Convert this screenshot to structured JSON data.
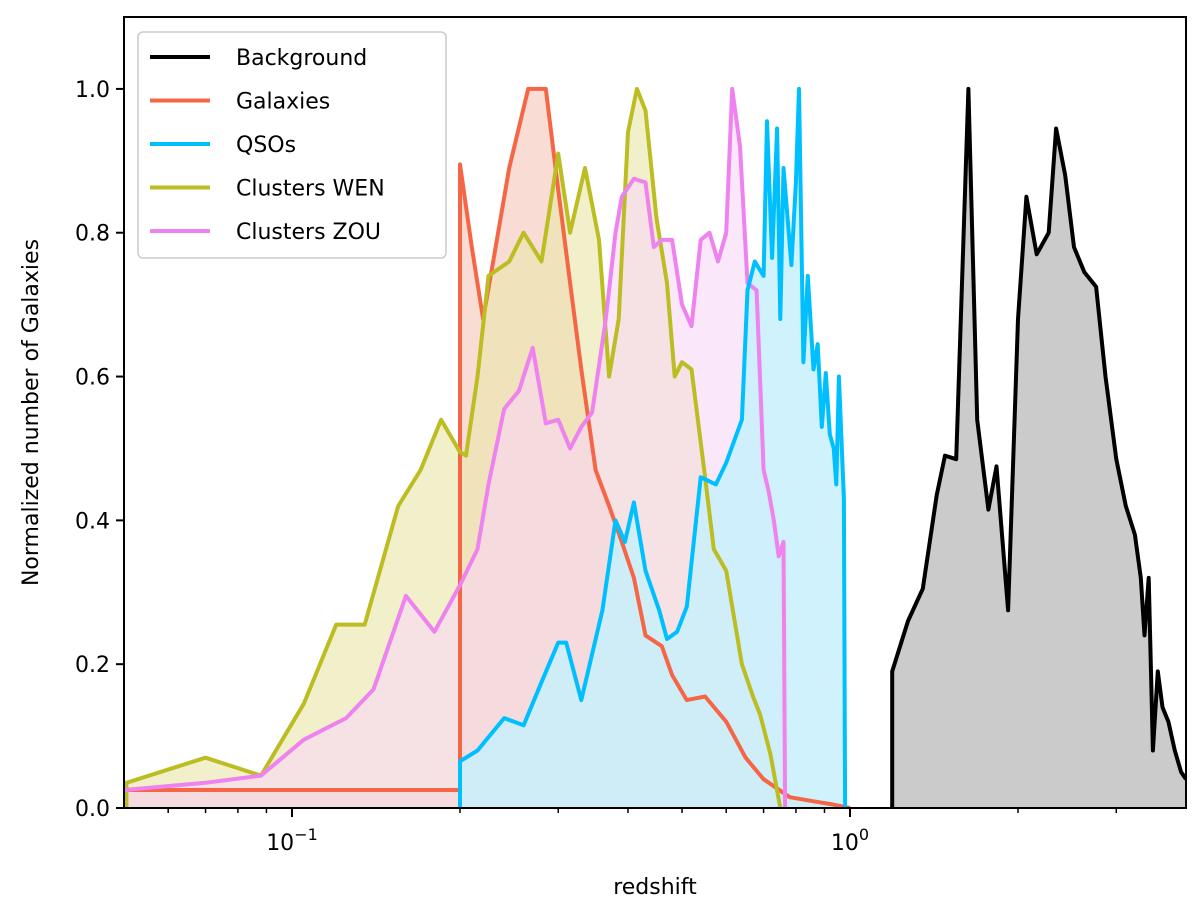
{
  "chart_data": {
    "type": "area",
    "xlabel": "redshift",
    "ylabel": "Normalized number of Galaxies",
    "xscale": "log",
    "xlim": [
      0.05,
      4.0
    ],
    "ylim": [
      0.0,
      1.1
    ],
    "xticks": [
      {
        "value": 0.1,
        "base": "10",
        "exp": "−1"
      },
      {
        "value": 1.0,
        "base": "10",
        "exp": "0"
      }
    ],
    "yticks": [
      {
        "value": 0.0,
        "label": "0.0"
      },
      {
        "value": 0.2,
        "label": "0.2"
      },
      {
        "value": 0.4,
        "label": "0.4"
      },
      {
        "value": 0.6,
        "label": "0.6"
      },
      {
        "value": 0.8,
        "label": "0.8"
      },
      {
        "value": 1.0,
        "label": "1.0"
      }
    ],
    "legend_position": "top-left",
    "series": [
      {
        "name": "Background",
        "color": "#000000",
        "fill": "#bebebe",
        "fill_opacity": 0.8,
        "points": [
          [
            1.19,
            0.0
          ],
          [
            1.19,
            0.19
          ],
          [
            1.27,
            0.26
          ],
          [
            1.35,
            0.305
          ],
          [
            1.43,
            0.435
          ],
          [
            1.48,
            0.49
          ],
          [
            1.55,
            0.485
          ],
          [
            1.63,
            1.0
          ],
          [
            1.69,
            0.54
          ],
          [
            1.77,
            0.415
          ],
          [
            1.83,
            0.475
          ],
          [
            1.92,
            0.275
          ],
          [
            2.0,
            0.68
          ],
          [
            2.07,
            0.85
          ],
          [
            2.16,
            0.77
          ],
          [
            2.27,
            0.8
          ],
          [
            2.34,
            0.945
          ],
          [
            2.43,
            0.88
          ],
          [
            2.52,
            0.78
          ],
          [
            2.63,
            0.745
          ],
          [
            2.76,
            0.725
          ],
          [
            2.87,
            0.6
          ],
          [
            3.0,
            0.485
          ],
          [
            3.12,
            0.42
          ],
          [
            3.24,
            0.38
          ],
          [
            3.32,
            0.32
          ],
          [
            3.37,
            0.24
          ],
          [
            3.43,
            0.32
          ],
          [
            3.49,
            0.08
          ],
          [
            3.56,
            0.19
          ],
          [
            3.63,
            0.14
          ],
          [
            3.72,
            0.12
          ],
          [
            3.82,
            0.08
          ],
          [
            3.92,
            0.05
          ],
          [
            4.0,
            0.04
          ]
        ]
      },
      {
        "name": "Galaxies",
        "color": "#f56647",
        "fill": "#f5c6b8",
        "fill_opacity": 0.6,
        "points": [
          [
            0.05,
            0.025
          ],
          [
            0.1,
            0.025
          ],
          [
            0.2,
            0.025
          ],
          [
            0.2,
            0.895
          ],
          [
            0.21,
            0.78
          ],
          [
            0.22,
            0.68
          ],
          [
            0.23,
            0.765
          ],
          [
            0.245,
            0.89
          ],
          [
            0.265,
            1.0
          ],
          [
            0.285,
            1.0
          ],
          [
            0.3,
            0.86
          ],
          [
            0.315,
            0.73
          ],
          [
            0.33,
            0.61
          ],
          [
            0.35,
            0.47
          ],
          [
            0.37,
            0.42
          ],
          [
            0.39,
            0.37
          ],
          [
            0.41,
            0.32
          ],
          [
            0.43,
            0.24
          ],
          [
            0.46,
            0.225
          ],
          [
            0.48,
            0.185
          ],
          [
            0.51,
            0.15
          ],
          [
            0.55,
            0.155
          ],
          [
            0.6,
            0.12
          ],
          [
            0.65,
            0.07
          ],
          [
            0.7,
            0.04
          ],
          [
            0.78,
            0.015
          ],
          [
            0.85,
            0.01
          ],
          [
            0.93,
            0.005
          ],
          [
            1.0,
            0.0
          ]
        ]
      },
      {
        "name": "QSOs",
        "color": "#00bfff",
        "fill": "#c8f0fb",
        "fill_opacity": 0.85,
        "points": [
          [
            0.2,
            0.0
          ],
          [
            0.2,
            0.065
          ],
          [
            0.215,
            0.08
          ],
          [
            0.24,
            0.125
          ],
          [
            0.26,
            0.115
          ],
          [
            0.28,
            0.175
          ],
          [
            0.3,
            0.23
          ],
          [
            0.31,
            0.23
          ],
          [
            0.33,
            0.15
          ],
          [
            0.36,
            0.275
          ],
          [
            0.38,
            0.4
          ],
          [
            0.395,
            0.37
          ],
          [
            0.41,
            0.425
          ],
          [
            0.43,
            0.33
          ],
          [
            0.455,
            0.275
          ],
          [
            0.47,
            0.235
          ],
          [
            0.49,
            0.245
          ],
          [
            0.51,
            0.28
          ],
          [
            0.54,
            0.46
          ],
          [
            0.575,
            0.45
          ],
          [
            0.6,
            0.48
          ],
          [
            0.64,
            0.54
          ],
          [
            0.655,
            0.72
          ],
          [
            0.675,
            0.76
          ],
          [
            0.7,
            0.74
          ],
          [
            0.71,
            0.955
          ],
          [
            0.725,
            0.765
          ],
          [
            0.74,
            0.945
          ],
          [
            0.75,
            0.68
          ],
          [
            0.76,
            0.89
          ],
          [
            0.785,
            0.755
          ],
          [
            0.8,
            0.87
          ],
          [
            0.81,
            1.0
          ],
          [
            0.825,
            0.62
          ],
          [
            0.84,
            0.74
          ],
          [
            0.86,
            0.61
          ],
          [
            0.875,
            0.645
          ],
          [
            0.89,
            0.53
          ],
          [
            0.905,
            0.605
          ],
          [
            0.92,
            0.52
          ],
          [
            0.935,
            0.5
          ],
          [
            0.945,
            0.45
          ],
          [
            0.955,
            0.6
          ],
          [
            0.975,
            0.43
          ],
          [
            0.98,
            0.0
          ]
        ]
      },
      {
        "name": "Clusters WEN",
        "color": "#bcbd22",
        "fill": "#e9e6a9",
        "fill_opacity": 0.6,
        "points": [
          [
            0.0505,
            0.0
          ],
          [
            0.0505,
            0.035
          ],
          [
            0.07,
            0.07
          ],
          [
            0.088,
            0.045
          ],
          [
            0.105,
            0.145
          ],
          [
            0.12,
            0.255
          ],
          [
            0.135,
            0.255
          ],
          [
            0.155,
            0.42
          ],
          [
            0.17,
            0.47
          ],
          [
            0.185,
            0.54
          ],
          [
            0.2,
            0.495
          ],
          [
            0.205,
            0.49
          ],
          [
            0.215,
            0.6
          ],
          [
            0.225,
            0.74
          ],
          [
            0.245,
            0.76
          ],
          [
            0.26,
            0.8
          ],
          [
            0.28,
            0.76
          ],
          [
            0.3,
            0.91
          ],
          [
            0.315,
            0.8
          ],
          [
            0.335,
            0.89
          ],
          [
            0.355,
            0.79
          ],
          [
            0.37,
            0.6
          ],
          [
            0.385,
            0.68
          ],
          [
            0.4,
            0.94
          ],
          [
            0.415,
            1.0
          ],
          [
            0.43,
            0.97
          ],
          [
            0.45,
            0.82
          ],
          [
            0.47,
            0.73
          ],
          [
            0.485,
            0.6
          ],
          [
            0.5,
            0.62
          ],
          [
            0.52,
            0.61
          ],
          [
            0.55,
            0.46
          ],
          [
            0.57,
            0.36
          ],
          [
            0.6,
            0.33
          ],
          [
            0.64,
            0.2
          ],
          [
            0.67,
            0.155
          ],
          [
            0.69,
            0.13
          ],
          [
            0.72,
            0.075
          ],
          [
            0.75,
            0.0
          ]
        ]
      },
      {
        "name": "Clusters ZOU",
        "color": "#ee82ee",
        "fill": "#f8d7f6",
        "fill_opacity": 0.6,
        "points": [
          [
            0.05,
            0.025
          ],
          [
            0.07,
            0.035
          ],
          [
            0.088,
            0.045
          ],
          [
            0.105,
            0.095
          ],
          [
            0.125,
            0.125
          ],
          [
            0.14,
            0.165
          ],
          [
            0.16,
            0.295
          ],
          [
            0.18,
            0.245
          ],
          [
            0.2,
            0.31
          ],
          [
            0.215,
            0.36
          ],
          [
            0.225,
            0.45
          ],
          [
            0.24,
            0.555
          ],
          [
            0.255,
            0.58
          ],
          [
            0.27,
            0.64
          ],
          [
            0.285,
            0.535
          ],
          [
            0.3,
            0.54
          ],
          [
            0.315,
            0.5
          ],
          [
            0.33,
            0.53
          ],
          [
            0.345,
            0.55
          ],
          [
            0.365,
            0.68
          ],
          [
            0.38,
            0.8
          ],
          [
            0.39,
            0.85
          ],
          [
            0.41,
            0.875
          ],
          [
            0.43,
            0.87
          ],
          [
            0.445,
            0.78
          ],
          [
            0.46,
            0.79
          ],
          [
            0.48,
            0.79
          ],
          [
            0.5,
            0.7
          ],
          [
            0.52,
            0.67
          ],
          [
            0.54,
            0.79
          ],
          [
            0.56,
            0.8
          ],
          [
            0.58,
            0.76
          ],
          [
            0.6,
            0.8
          ],
          [
            0.615,
            1.0
          ],
          [
            0.635,
            0.92
          ],
          [
            0.655,
            0.73
          ],
          [
            0.68,
            0.72
          ],
          [
            0.7,
            0.47
          ],
          [
            0.715,
            0.44
          ],
          [
            0.73,
            0.4
          ],
          [
            0.745,
            0.35
          ],
          [
            0.76,
            0.37
          ],
          [
            0.765,
            0.0
          ]
        ]
      }
    ]
  }
}
